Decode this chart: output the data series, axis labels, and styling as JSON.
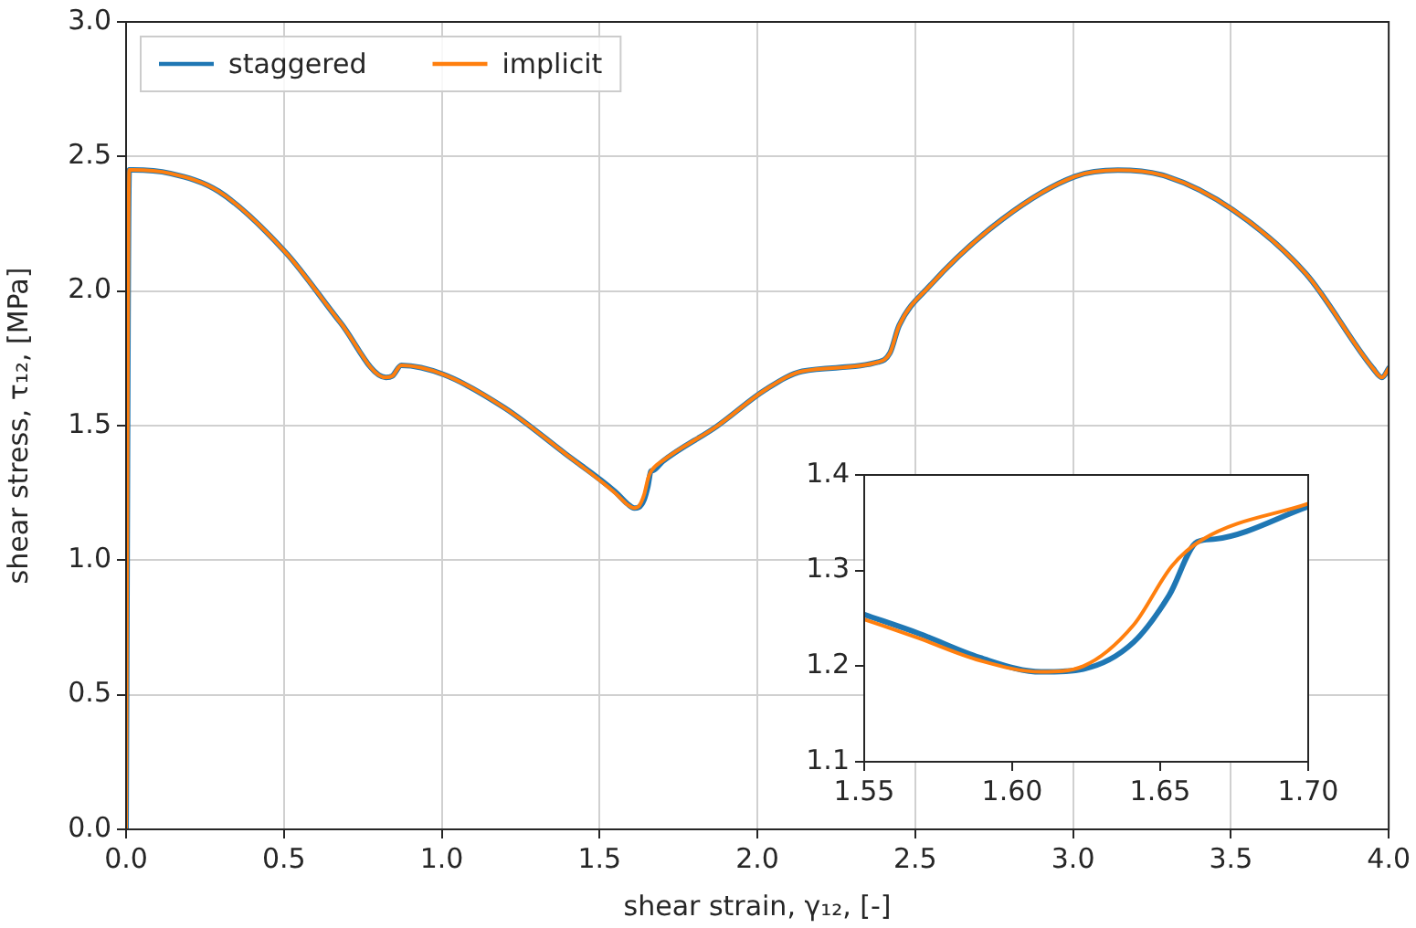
{
  "chart_data": [
    {
      "type": "line",
      "xlabel": "shear strain, γ₁₂, [-]",
      "ylabel": "shear stress, τ₁₂, [MPa]",
      "xlim": [
        0,
        4
      ],
      "ylim": [
        0,
        3
      ],
      "xticks": [
        {
          "value": 0,
          "label": "0.0"
        },
        {
          "value": 0.5,
          "label": "0.5"
        },
        {
          "value": 1,
          "label": "1.0"
        },
        {
          "value": 1.5,
          "label": "1.5"
        },
        {
          "value": 2,
          "label": "2.0"
        },
        {
          "value": 2.5,
          "label": "2.5"
        },
        {
          "value": 3,
          "label": "3.0"
        },
        {
          "value": 3.5,
          "label": "3.5"
        },
        {
          "value": 4,
          "label": "4.0"
        }
      ],
      "yticks": [
        {
          "value": 0,
          "label": "0.0"
        },
        {
          "value": 0.5,
          "label": "0.5"
        },
        {
          "value": 1,
          "label": "1.0"
        },
        {
          "value": 1.5,
          "label": "1.5"
        },
        {
          "value": 2,
          "label": "2.0"
        },
        {
          "value": 2.5,
          "label": "2.5"
        },
        {
          "value": 3,
          "label": "3.0"
        }
      ],
      "grid": true,
      "legend": "top left",
      "series": [
        {
          "name": "staggered",
          "color": "#1f77b4",
          "x": [
            0,
            0.01,
            0.02,
            0.14,
            0.294,
            0.506,
            0.679,
            0.823,
            0.843,
            0.872,
            1.006,
            1.199,
            1.391,
            1.55,
            1.589,
            1.61,
            1.624,
            1.641,
            1.653,
            1.6625,
            1.669,
            1.7,
            1.872,
            2.026,
            2.142,
            2.382,
            2.42,
            2.449,
            2.545,
            2.776,
            3.007,
            3.142,
            3.296,
            3.507,
            3.738,
            3.95,
            3.979,
            4.0
          ],
          "values": [
            0,
            2.45,
            2.45,
            2.437,
            2.37,
            2.143,
            1.883,
            1.679,
            1.684,
            1.724,
            1.69,
            1.566,
            1.396,
            1.254,
            1.209,
            1.194,
            1.197,
            1.225,
            1.274,
            1.33,
            1.333,
            1.367,
            1.498,
            1.634,
            1.702,
            1.736,
            1.77,
            1.872,
            2.018,
            2.267,
            2.426,
            2.449,
            2.426,
            2.301,
            2.064,
            1.713,
            1.679,
            1.713
          ]
        },
        {
          "name": "implicit",
          "color": "#ff7f0e",
          "x": [
            0,
            0.01,
            0.02,
            0.14,
            0.294,
            0.506,
            0.679,
            0.823,
            0.843,
            0.872,
            1.006,
            1.199,
            1.391,
            1.55,
            1.589,
            1.61,
            1.624,
            1.641,
            1.654,
            1.664,
            1.7,
            1.872,
            2.026,
            2.142,
            2.382,
            2.42,
            2.449,
            2.545,
            2.776,
            3.007,
            3.142,
            3.296,
            3.507,
            3.738,
            3.95,
            3.979,
            4.0
          ],
          "values": [
            0,
            2.45,
            2.45,
            2.437,
            2.37,
            2.143,
            1.883,
            1.679,
            1.684,
            1.724,
            1.69,
            1.566,
            1.396,
            1.249,
            1.206,
            1.194,
            1.2,
            1.243,
            1.305,
            1.332,
            1.37,
            1.498,
            1.634,
            1.702,
            1.736,
            1.77,
            1.872,
            2.018,
            2.267,
            2.426,
            2.449,
            2.426,
            2.301,
            2.064,
            1.713,
            1.679,
            1.713
          ]
        }
      ]
    },
    {
      "type": "line",
      "xlim": [
        1.55,
        1.7
      ],
      "ylim": [
        1.1,
        1.4
      ],
      "xticks": [
        {
          "value": 1.55,
          "label": "1.55"
        },
        {
          "value": 1.6,
          "label": "1.60"
        },
        {
          "value": 1.65,
          "label": "1.65"
        },
        {
          "value": 1.7,
          "label": "1.70"
        }
      ],
      "yticks": [
        1.1,
        1.2,
        1.3,
        1.4
      ],
      "grid": false,
      "legend": false,
      "series": [
        {
          "color": "#1f77b4",
          "x": [
            1.55,
            1.5686,
            1.589,
            1.6098,
            1.624,
            1.641,
            1.653,
            1.6625,
            1.6686,
            1.7
          ],
          "values": [
            1.254,
            1.234,
            1.209,
            1.194,
            1.197,
            1.225,
            1.274,
            1.33,
            1.333,
            1.367
          ]
        },
        {
          "color": "#ff7f0e",
          "x": [
            1.55,
            1.5686,
            1.589,
            1.6098,
            1.624,
            1.641,
            1.654,
            1.664,
            1.7
          ],
          "values": [
            1.249,
            1.229,
            1.206,
            1.194,
            1.2,
            1.243,
            1.305,
            1.332,
            1.37
          ]
        }
      ]
    }
  ]
}
